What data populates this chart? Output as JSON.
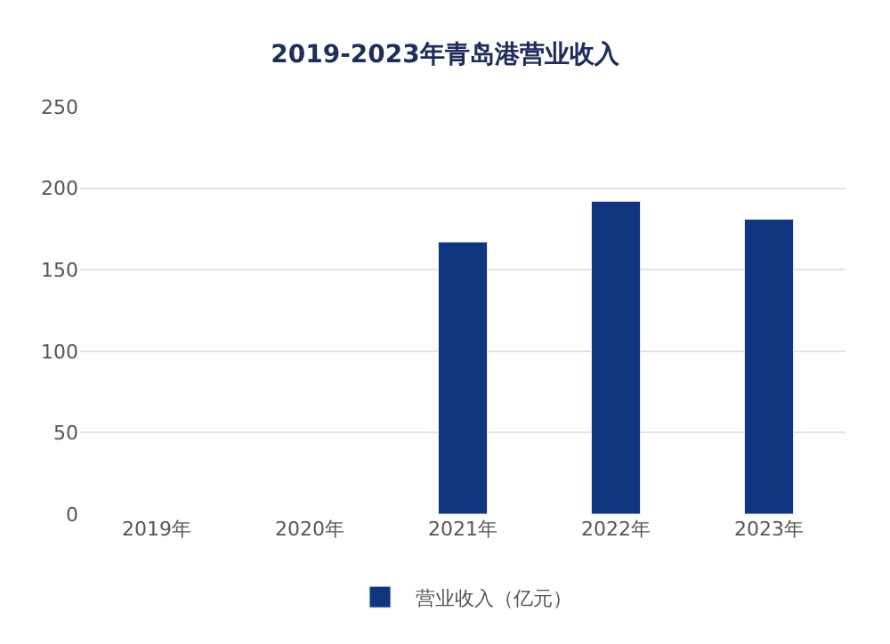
{
  "chart_data": {
    "type": "bar",
    "title": "2019-2023年青岛港营业收入",
    "categories": [
      "2019年",
      "2020年",
      "2021年",
      "2022年",
      "2023年"
    ],
    "series": [
      {
        "name": "营业收入（亿元）",
        "color": "#10367f",
        "values": [
          null,
          null,
          167,
          192,
          181
        ]
      }
    ],
    "ylim": [
      0,
      250
    ],
    "yticks": [
      0,
      50,
      100,
      150,
      200,
      250
    ],
    "grid": "y",
    "legend": "bottom"
  }
}
